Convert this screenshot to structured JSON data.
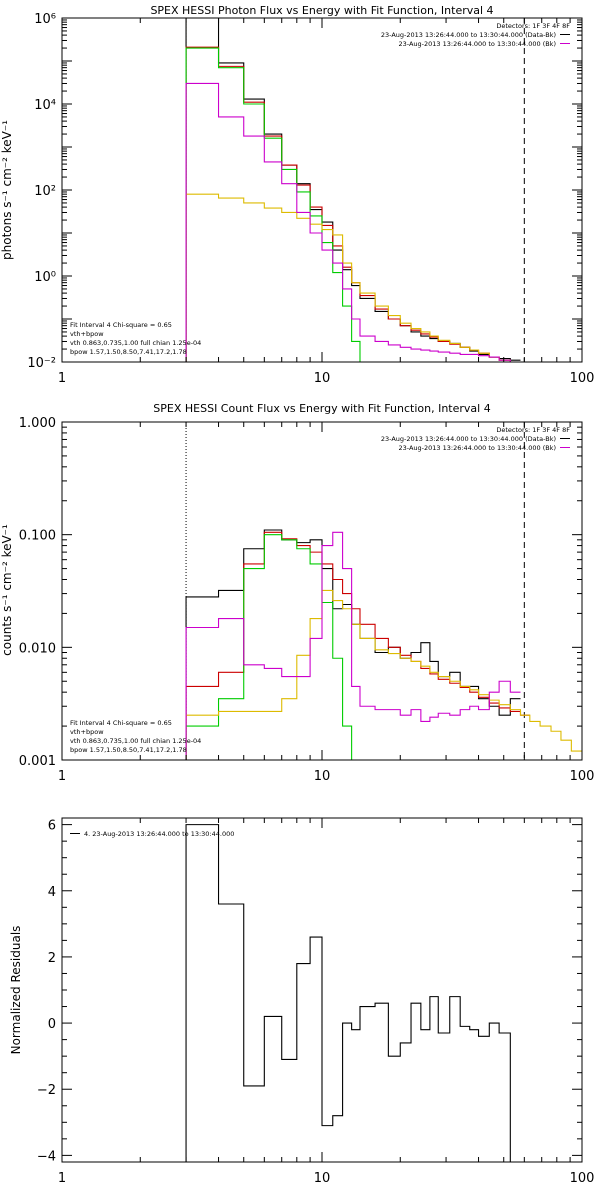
{
  "colors": {
    "data": "#000000",
    "total": "#cc0000",
    "vth": "#00cc00",
    "bpow": "#ddbb00",
    "bk": "#cc00cc"
  },
  "chart_data": [
    {
      "type": "line",
      "title": "SPEX HESSI Photon Flux vs Energy with Fit Function, Interval 4",
      "ylabel": "photons s⁻¹ cm⁻² keV⁻¹",
      "xlabel": "",
      "xscale": "log",
      "yscale": "log",
      "xlim": [
        1,
        100
      ],
      "ylim": [
        0.01,
        1000000
      ],
      "x_ticks": [
        {
          "v": 1,
          "t": "1"
        },
        {
          "v": 10,
          "t": "10"
        },
        {
          "v": 100,
          "t": "100"
        }
      ],
      "y_ticks": [
        {
          "v": 0.01,
          "t": "10⁻²"
        },
        {
          "v": 1,
          "t": "10⁰"
        },
        {
          "v": 100,
          "t": "10²"
        },
        {
          "v": 10000,
          "t": "10⁴"
        },
        {
          "v": 1000000,
          "t": "10⁶"
        }
      ],
      "vlines": [
        {
          "x": 3,
          "style": "dotted",
          "color": "#ddbb00"
        },
        {
          "x": 60,
          "style": "dashed",
          "color": "#000000"
        }
      ],
      "legend_tr": [
        "Detectors: 1F 3F 4F 8F",
        "23-Aug-2013 13:26:44.000 to 13:30:44.000 (Data-Bk)",
        "23-Aug-2013 13:26:44.000 to 13:30:44.000 (Bk)"
      ],
      "legend_tr_colors": [
        "#000000",
        "#000000",
        "#cc00cc"
      ],
      "legend_bl": [
        "Fit Interval 4   Chi-square = 0.65",
        "vth+bpow",
        "vth 0.863,0.735,1.00  full chian 1.25e-04",
        "bpow 1.57,1.50,8.50,7.41,17.2,1.78"
      ],
      "legend_bl_colors": [
        "#000000",
        "#cc0000",
        "#00cc00",
        "#ddbb00"
      ],
      "edges": [
        3,
        4,
        5,
        6,
        7,
        8,
        9,
        10,
        11,
        12,
        13,
        14,
        16,
        18,
        20,
        22,
        24,
        26,
        28,
        31,
        34,
        37,
        40,
        44,
        48,
        53,
        58,
        63,
        69
      ],
      "series": [
        {
          "name": "Data-Bk",
          "color": "#000000",
          "values": [
            1000000,
            90000,
            13000,
            2000,
            380,
            140,
            35,
            18,
            4,
            1.4,
            0.6,
            0.3,
            0.15,
            0.1,
            0.07,
            0.05,
            0.04,
            0.035,
            0.03,
            0.027,
            0.022,
            0.018,
            0.015,
            0.013,
            0.012,
            0.011
          ]
        },
        {
          "name": "vth+bpow",
          "color": "#cc0000",
          "values": [
            210000,
            75000,
            11000,
            1800,
            380,
            130,
            40,
            15,
            5,
            1.6,
            0.7,
            0.35,
            0.17,
            0.1,
            0.07,
            0.055,
            0.045,
            0.038,
            0.03,
            0.026,
            0.022,
            0.019,
            0.016,
            0.013,
            0.011,
            0.009,
            0.008
          ]
        },
        {
          "name": "vth",
          "color": "#00cc00",
          "values": [
            200000,
            70000,
            10000,
            1600,
            300,
            90,
            25,
            6,
            1.2,
            0.2,
            0.03,
            0.006
          ]
        },
        {
          "name": "bpow",
          "color": "#ddbb00",
          "values": [
            80,
            65,
            50,
            38,
            30,
            22,
            16,
            12,
            9,
            2,
            0.7,
            0.4,
            0.2,
            0.12,
            0.08,
            0.06,
            0.05,
            0.04,
            0.032,
            0.027,
            0.022,
            0.019,
            0.016,
            0.013,
            0.011,
            0.0095,
            0.008,
            0.0075
          ]
        },
        {
          "name": "Bk",
          "color": "#cc00cc",
          "values": [
            30000,
            5000,
            1800,
            450,
            140,
            30,
            10,
            4,
            2,
            0.5,
            0.1,
            0.04,
            0.03,
            0.025,
            0.022,
            0.02,
            0.019,
            0.018,
            0.017,
            0.016,
            0.015,
            0.015,
            0.014,
            0.013,
            0.011,
            0.01
          ]
        }
      ]
    },
    {
      "type": "line",
      "title": "SPEX HESSI Count Flux vs Energy with Fit Function, Interval 4",
      "ylabel": "counts s⁻¹ cm⁻² keV⁻¹",
      "xlabel": "",
      "xscale": "log",
      "yscale": "log",
      "xlim": [
        1,
        100
      ],
      "ylim": [
        0.001,
        1
      ],
      "x_ticks": [
        {
          "v": 1,
          "t": "1"
        },
        {
          "v": 10,
          "t": "10"
        },
        {
          "v": 100,
          "t": "100"
        }
      ],
      "y_ticks": [
        {
          "v": 0.001,
          "t": "0.001"
        },
        {
          "v": 0.01,
          "t": "0.010"
        },
        {
          "v": 0.1,
          "t": "0.100"
        },
        {
          "v": 1,
          "t": "1.000"
        }
      ],
      "vlines": [
        {
          "x": 3,
          "style": "dotted",
          "color": "#000000"
        },
        {
          "x": 60,
          "style": "dashed",
          "color": "#000000"
        }
      ],
      "legend_tr": [
        "Detectors: 1F 3F 4F 8F",
        "23-Aug-2013 13:26:44.000 to 13:30:44.000 (Data-Bk)",
        "23-Aug-2013 13:26:44.000 to 13:30:44.000 (Bk)"
      ],
      "legend_tr_colors": [
        "#000000",
        "#000000",
        "#cc00cc"
      ],
      "legend_bl": [
        "Fit Interval 4   Chi-square = 0.65",
        "vth+bpow",
        "vth 0.863,0.735,1.00  full chian 1.25e-04",
        "bpow 1.57,1.50,8.50,7.41,17.2,1.78"
      ],
      "legend_bl_colors": [
        "#000000",
        "#cc0000",
        "#00cc00",
        "#ddbb00"
      ],
      "edges": [
        3,
        4,
        5,
        6,
        7,
        8,
        9,
        10,
        11,
        12,
        13,
        14,
        16,
        18,
        20,
        22,
        24,
        26,
        28,
        31,
        34,
        37,
        40,
        44,
        48,
        53,
        58,
        63,
        69,
        76,
        83,
        91,
        100
      ],
      "series": [
        {
          "name": "Data-Bk",
          "color": "#000000",
          "values": [
            0.028,
            0.032,
            0.075,
            0.11,
            0.09,
            0.085,
            0.09,
            0.05,
            0.022,
            0.024,
            0.016,
            0.012,
            0.009,
            0.01,
            0.008,
            0.009,
            0.011,
            0.0075,
            0.0055,
            0.006,
            0.0045,
            0.0045,
            0.0035,
            0.003,
            0.0025,
            0.0035
          ]
        },
        {
          "name": "vth+bpow",
          "color": "#cc0000",
          "values": [
            0.0045,
            0.006,
            0.055,
            0.105,
            0.092,
            0.08,
            0.07,
            0.055,
            0.04,
            0.03,
            0.022,
            0.016,
            0.012,
            0.01,
            0.0085,
            0.0075,
            0.0065,
            0.0058,
            0.0052,
            0.0048,
            0.0044,
            0.004,
            0.0036,
            0.0032,
            0.0029,
            0.0027,
            0.0025
          ]
        },
        {
          "name": "vth",
          "color": "#00cc00",
          "values": [
            0.002,
            0.0035,
            0.05,
            0.1,
            0.09,
            0.075,
            0.055,
            0.025,
            0.008,
            0.002,
            0.0004
          ]
        },
        {
          "name": "bpow",
          "color": "#ddbb00",
          "values": [
            0.0025,
            0.0027,
            0.0027,
            0.0027,
            0.0035,
            0.0085,
            0.018,
            0.032,
            0.026,
            0.022,
            0.016,
            0.012,
            0.0095,
            0.0088,
            0.008,
            0.0075,
            0.0068,
            0.006,
            0.0055,
            0.005,
            0.0045,
            0.0042,
            0.0038,
            0.0034,
            0.0031,
            0.0028,
            0.0025,
            0.0022,
            0.002,
            0.0018,
            0.0015,
            0.0012
          ]
        },
        {
          "name": "Bk",
          "color": "#cc00cc",
          "values": [
            0.015,
            0.018,
            0.007,
            0.0065,
            0.0055,
            0.0055,
            0.012,
            0.08,
            0.105,
            0.05,
            0.0045,
            0.003,
            0.0028,
            0.0028,
            0.0025,
            0.0028,
            0.0022,
            0.0024,
            0.0026,
            0.0025,
            0.0028,
            0.003,
            0.0028,
            0.004,
            0.005,
            0.004
          ]
        }
      ]
    },
    {
      "type": "line",
      "title": "",
      "ylabel": "Normalized Residuals",
      "xlabel": "",
      "xscale": "log",
      "yscale": "linear",
      "xlim": [
        1,
        100
      ],
      "ylim": [
        -4.2,
        6.2
      ],
      "x_ticks": [
        {
          "v": 1,
          "t": "1"
        },
        {
          "v": 10,
          "t": "10"
        },
        {
          "v": 100,
          "t": "100"
        }
      ],
      "y_ticks": [
        {
          "v": -4,
          "t": "−4"
        },
        {
          "v": -2,
          "t": "−2"
        },
        {
          "v": 0,
          "t": "0"
        },
        {
          "v": 2,
          "t": "2"
        },
        {
          "v": 4,
          "t": "4"
        },
        {
          "v": 6,
          "t": "6"
        }
      ],
      "vlines": [],
      "legend_tr": [],
      "legend_tr_colors": [],
      "legend_tl": [
        "4. 23-Aug-2013 13:26:44.000 to 13:30:44.000"
      ],
      "legend_bl": [],
      "legend_bl_colors": [],
      "edges": [
        3,
        4,
        5,
        6,
        7,
        8,
        9,
        10,
        11,
        12,
        13,
        14,
        16,
        18,
        20,
        22,
        24,
        26,
        28,
        31,
        34,
        37,
        40,
        44,
        48,
        53,
        58,
        63
      ],
      "series": [
        {
          "name": "4. 23-Aug-2013 13:26:44.000 to 13:30:44.000",
          "color": "#000000",
          "values": [
            6.0,
            3.6,
            -1.9,
            0.2,
            -1.1,
            1.8,
            2.6,
            -3.1,
            -2.8,
            0.0,
            -0.2,
            0.5,
            0.6,
            -1.0,
            -0.6,
            0.6,
            -0.2,
            0.8,
            -0.3,
            0.8,
            -0.1,
            -0.2,
            -0.4,
            0.0,
            -0.3
          ]
        }
      ],
      "baseline_to": -4.2,
      "step_close_to": -4.2
    }
  ]
}
